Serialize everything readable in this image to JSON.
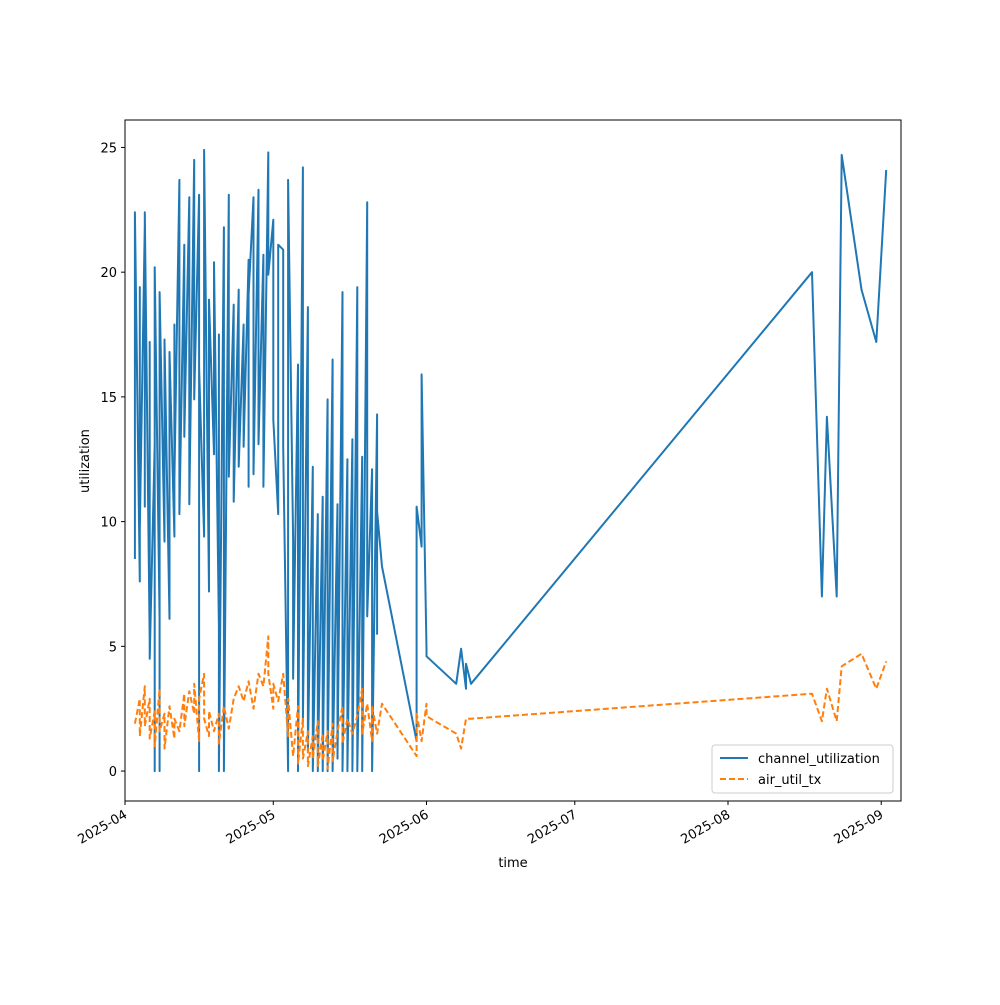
{
  "chart_data": {
    "type": "line",
    "title": "",
    "xlabel": "time",
    "ylabel": "utilization",
    "xlim": [
      "2025-04-01",
      "2025-09-05"
    ],
    "ylim": [
      -1.2,
      26.1
    ],
    "x_ticks": [
      "2025-04-01",
      "2025-05-01",
      "2025-06-01",
      "2025-07-01",
      "2025-08-01",
      "2025-09-01"
    ],
    "x_tick_labels": [
      "2025-04",
      "2025-05",
      "2025-06",
      "2025-07",
      "2025-08",
      "2025-09"
    ],
    "y_ticks": [
      0,
      5,
      10,
      15,
      20,
      25
    ],
    "y_tick_labels": [
      "0",
      "5",
      "10",
      "15",
      "20",
      "25"
    ],
    "grid": false,
    "legend_position": "lower-right",
    "series": [
      {
        "name": "channel_utilization",
        "color": "#1f77b4",
        "style": "solid",
        "points": [
          [
            "2025-04-03",
            8.5
          ],
          [
            "2025-04-03",
            22.4
          ],
          [
            "2025-04-04",
            7.6
          ],
          [
            "2025-04-04",
            19.4
          ],
          [
            "2025-04-04",
            9.7
          ],
          [
            "2025-04-05",
            21.9
          ],
          [
            "2025-04-05",
            10.6
          ],
          [
            "2025-04-05",
            22.4
          ],
          [
            "2025-04-06",
            5.2
          ],
          [
            "2025-04-06",
            17.2
          ],
          [
            "2025-04-06",
            4.5
          ],
          [
            "2025-04-07",
            13.1
          ],
          [
            "2025-04-07",
            0
          ],
          [
            "2025-04-07",
            20.2
          ],
          [
            "2025-04-08",
            6.1
          ],
          [
            "2025-04-08",
            0
          ],
          [
            "2025-04-08",
            19.2
          ],
          [
            "2025-04-09",
            9.2
          ],
          [
            "2025-04-09",
            17.3
          ],
          [
            "2025-04-10",
            6.1
          ],
          [
            "2025-04-10",
            16.8
          ],
          [
            "2025-04-11",
            9.4
          ],
          [
            "2025-04-11",
            17.9
          ],
          [
            "2025-04-11",
            11.7
          ],
          [
            "2025-04-12",
            23.7
          ],
          [
            "2025-04-12",
            10.3
          ],
          [
            "2025-04-13",
            21.1
          ],
          [
            "2025-04-13",
            13.4
          ],
          [
            "2025-04-14",
            23.0
          ],
          [
            "2025-04-14",
            10.7
          ],
          [
            "2025-04-15",
            24.5
          ],
          [
            "2025-04-15",
            14.9
          ],
          [
            "2025-04-16",
            23.1
          ],
          [
            "2025-04-16",
            0
          ],
          [
            "2025-04-16",
            16.2
          ],
          [
            "2025-04-17",
            9.4
          ],
          [
            "2025-04-17",
            24.9
          ],
          [
            "2025-04-18",
            7.2
          ],
          [
            "2025-04-18",
            18.9
          ],
          [
            "2025-04-19",
            12.7
          ],
          [
            "2025-04-19",
            20.4
          ],
          [
            "2025-04-20",
            5.8
          ],
          [
            "2025-04-20",
            17.5
          ],
          [
            "2025-04-20",
            0
          ],
          [
            "2025-04-21",
            21.8
          ],
          [
            "2025-04-21",
            0
          ],
          [
            "2025-04-22",
            23.1
          ],
          [
            "2025-04-22",
            11.8
          ],
          [
            "2025-04-23",
            18.7
          ],
          [
            "2025-04-23",
            10.8
          ],
          [
            "2025-04-24",
            19.3
          ],
          [
            "2025-04-24",
            12.2
          ],
          [
            "2025-04-25",
            17.9
          ],
          [
            "2025-04-25",
            13.0
          ],
          [
            "2025-04-26",
            20.5
          ],
          [
            "2025-04-26",
            11.4
          ],
          [
            "2025-04-26",
            19.1
          ],
          [
            "2025-04-27",
            23.0
          ],
          [
            "2025-04-27",
            11.9
          ],
          [
            "2025-04-28",
            23.3
          ],
          [
            "2025-04-28",
            13.1
          ],
          [
            "2025-04-29",
            20.7
          ],
          [
            "2025-04-29",
            11.4
          ],
          [
            "2025-04-30",
            24.8
          ],
          [
            "2025-04-30",
            19.9
          ],
          [
            "2025-05-01",
            22.1
          ],
          [
            "2025-05-01",
            14.1
          ],
          [
            "2025-05-02",
            10.3
          ],
          [
            "2025-05-02",
            21.1
          ],
          [
            "2025-05-03",
            20.9
          ],
          [
            "2025-05-03",
            13.0
          ],
          [
            "2025-05-04",
            0
          ],
          [
            "2025-05-04",
            23.7
          ],
          [
            "2025-05-05",
            9.3
          ],
          [
            "2025-05-05",
            3.7
          ],
          [
            "2025-05-06",
            16.3
          ],
          [
            "2025-05-06",
            0
          ],
          [
            "2025-05-07",
            24.2
          ],
          [
            "2025-05-07",
            2.0
          ],
          [
            "2025-05-08",
            18.6
          ],
          [
            "2025-05-08",
            0.8
          ],
          [
            "2025-05-09",
            12.2
          ],
          [
            "2025-05-09",
            0
          ],
          [
            "2025-05-10",
            10.3
          ],
          [
            "2025-05-10",
            0
          ],
          [
            "2025-05-11",
            11.0
          ],
          [
            "2025-05-11",
            0
          ],
          [
            "2025-05-12",
            14.9
          ],
          [
            "2025-05-12",
            0
          ],
          [
            "2025-05-13",
            16.5
          ],
          [
            "2025-05-13",
            0
          ],
          [
            "2025-05-14",
            10.7
          ],
          [
            "2025-05-14",
            0.5
          ],
          [
            "2025-05-15",
            19.2
          ],
          [
            "2025-05-15",
            0
          ],
          [
            "2025-05-16",
            12.5
          ],
          [
            "2025-05-16",
            0
          ],
          [
            "2025-05-17",
            13.3
          ],
          [
            "2025-05-17",
            0
          ],
          [
            "2025-05-18",
            19.4
          ],
          [
            "2025-05-18",
            0
          ],
          [
            "2025-05-19",
            12.6
          ],
          [
            "2025-05-19",
            0
          ],
          [
            "2025-05-20",
            22.8
          ],
          [
            "2025-05-20",
            6.2
          ],
          [
            "2025-05-21",
            12.1
          ],
          [
            "2025-05-21",
            0
          ],
          [
            "2025-05-22",
            14.3
          ],
          [
            "2025-05-22",
            5.5
          ],
          [
            "2025-05-22",
            10.4
          ],
          [
            "2025-05-23",
            8.2
          ],
          [
            "2025-05-30",
            1.2
          ],
          [
            "2025-05-30",
            10.6
          ],
          [
            "2025-05-31",
            9.0
          ],
          [
            "2025-05-31",
            15.9
          ],
          [
            "2025-06-01",
            4.9
          ],
          [
            "2025-06-01",
            4.6
          ],
          [
            "2025-06-07",
            3.5
          ],
          [
            "2025-06-08",
            4.9
          ],
          [
            "2025-06-09",
            3.3
          ],
          [
            "2025-06-09",
            4.3
          ],
          [
            "2025-06-10",
            3.5
          ],
          [
            "2025-08-18",
            20.0
          ],
          [
            "2025-08-20",
            7.0
          ],
          [
            "2025-08-21",
            14.2
          ],
          [
            "2025-08-23",
            7.0
          ],
          [
            "2025-08-24",
            24.7
          ],
          [
            "2025-08-28",
            19.3
          ],
          [
            "2025-08-31",
            17.2
          ],
          [
            "2025-09-02",
            24.1
          ]
        ]
      },
      {
        "name": "air_util_tx",
        "color": "#ff7f0e",
        "style": "dashed",
        "points": [
          [
            "2025-04-03",
            1.9
          ],
          [
            "2025-04-04",
            2.9
          ],
          [
            "2025-04-04",
            1.4
          ],
          [
            "2025-04-05",
            3.4
          ],
          [
            "2025-04-05",
            1.8
          ],
          [
            "2025-04-06",
            2.9
          ],
          [
            "2025-04-06",
            1.3
          ],
          [
            "2025-04-07",
            2.4
          ],
          [
            "2025-04-07",
            1.0
          ],
          [
            "2025-04-08",
            3.3
          ],
          [
            "2025-04-08",
            1.6
          ],
          [
            "2025-04-09",
            2.3
          ],
          [
            "2025-04-09",
            0.9
          ],
          [
            "2025-04-10",
            2.6
          ],
          [
            "2025-04-11",
            1.3
          ],
          [
            "2025-04-11",
            2.1
          ],
          [
            "2025-04-12",
            1.6
          ],
          [
            "2025-04-13",
            3.1
          ],
          [
            "2025-04-13",
            1.8
          ],
          [
            "2025-04-14",
            3.2
          ],
          [
            "2025-04-15",
            2.3
          ],
          [
            "2025-04-15",
            3.5
          ],
          [
            "2025-04-16",
            1.2
          ],
          [
            "2025-04-16",
            2.9
          ],
          [
            "2025-04-17",
            3.9
          ],
          [
            "2025-04-17",
            2.1
          ],
          [
            "2025-04-18",
            1.4
          ],
          [
            "2025-04-18",
            2.4
          ],
          [
            "2025-04-19",
            1.6
          ],
          [
            "2025-04-20",
            2.3
          ],
          [
            "2025-04-20",
            1.1
          ],
          [
            "2025-04-21",
            2.6
          ],
          [
            "2025-04-22",
            1.7
          ],
          [
            "2025-04-23",
            2.9
          ],
          [
            "2025-04-24",
            3.4
          ],
          [
            "2025-04-25",
            2.8
          ],
          [
            "2025-04-26",
            3.6
          ],
          [
            "2025-04-27",
            2.5
          ],
          [
            "2025-04-28",
            3.9
          ],
          [
            "2025-04-29",
            3.4
          ],
          [
            "2025-04-30",
            5.4
          ],
          [
            "2025-04-30",
            3.9
          ],
          [
            "2025-05-01",
            2.5
          ],
          [
            "2025-05-01",
            3.5
          ],
          [
            "2025-05-02",
            2.8
          ],
          [
            "2025-05-03",
            3.9
          ],
          [
            "2025-05-04",
            1.4
          ],
          [
            "2025-05-04",
            2.9
          ],
          [
            "2025-05-05",
            0.6
          ],
          [
            "2025-05-06",
            2.6
          ],
          [
            "2025-05-06",
            0.3
          ],
          [
            "2025-05-07",
            2.1
          ],
          [
            "2025-05-07",
            0.5
          ],
          [
            "2025-05-08",
            1.6
          ],
          [
            "2025-05-08",
            0.2
          ],
          [
            "2025-05-09",
            1.4
          ],
          [
            "2025-05-09",
            0.5
          ],
          [
            "2025-05-10",
            2.0
          ],
          [
            "2025-05-10",
            0.2
          ],
          [
            "2025-05-11",
            1.5
          ],
          [
            "2025-05-11",
            0.4
          ],
          [
            "2025-05-12",
            1.6
          ],
          [
            "2025-05-12",
            0.1
          ],
          [
            "2025-05-13",
            1.9
          ],
          [
            "2025-05-13",
            0.4
          ],
          [
            "2025-05-14",
            1.6
          ],
          [
            "2025-05-15",
            2.6
          ],
          [
            "2025-05-15",
            1.1
          ],
          [
            "2025-05-16",
            2.1
          ],
          [
            "2025-05-17",
            1.5
          ],
          [
            "2025-05-18",
            2.2
          ],
          [
            "2025-05-19",
            3.3
          ],
          [
            "2025-05-19",
            1.5
          ],
          [
            "2025-05-20",
            2.7
          ],
          [
            "2025-05-21",
            1.2
          ],
          [
            "2025-05-21",
            2.6
          ],
          [
            "2025-05-22",
            1.5
          ],
          [
            "2025-05-23",
            2.7
          ],
          [
            "2025-05-30",
            0.6
          ],
          [
            "2025-05-30",
            2.3
          ],
          [
            "2025-05-31",
            1.2
          ],
          [
            "2025-06-01",
            2.7
          ],
          [
            "2025-06-01",
            2.2
          ],
          [
            "2025-06-07",
            1.5
          ],
          [
            "2025-06-08",
            0.9
          ],
          [
            "2025-06-09",
            2.1
          ],
          [
            "2025-06-10",
            2.1
          ],
          [
            "2025-08-18",
            3.1
          ],
          [
            "2025-08-20",
            2.0
          ],
          [
            "2025-08-21",
            3.3
          ],
          [
            "2025-08-23",
            2.0
          ],
          [
            "2025-08-24",
            4.2
          ],
          [
            "2025-08-28",
            4.7
          ],
          [
            "2025-08-31",
            3.3
          ],
          [
            "2025-09-02",
            4.4
          ]
        ]
      }
    ]
  }
}
